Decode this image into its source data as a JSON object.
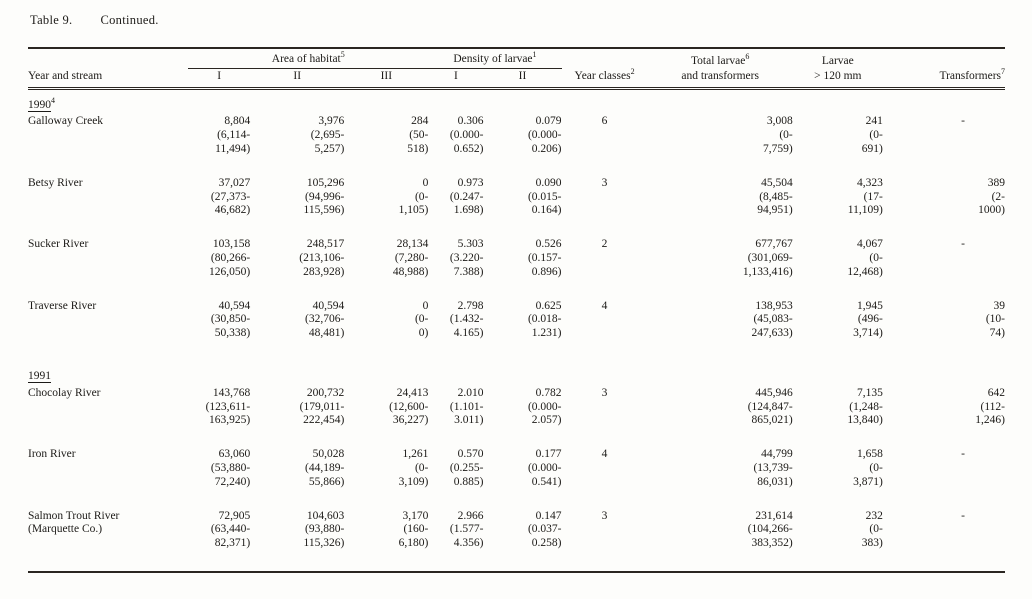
{
  "page": {
    "title_label": "Table 9.",
    "title_continued": "Continued."
  },
  "table": {
    "col_groups": {
      "area": {
        "label": "Area of habitat",
        "sup": "5"
      },
      "density": {
        "label": "Density of larvae",
        "sup": "1"
      }
    },
    "headers": {
      "stream": "Year and stream",
      "area_i": "I",
      "area_ii": "II",
      "area_iii": "III",
      "density_i": "I",
      "density_ii": "II",
      "year_classes": {
        "label": "Year classes",
        "sup": "2"
      },
      "total_line1": {
        "label": "Total larvae",
        "sup": "6"
      },
      "total_line2": "and transformers",
      "larvae_line1": "Larvae",
      "larvae_line2": "> 120 mm",
      "transformers": {
        "label": "Transformers",
        "sup": "7"
      }
    },
    "groups": [
      {
        "year": "1990",
        "sup": "4",
        "rows": [
          {
            "stream": "Galloway Creek",
            "cells": [
              "8,804\n(6,114-\n11,494)",
              "3,976\n(2,695-\n5,257)",
              "284\n(50-\n518)",
              "0.306\n(0.000-\n0.652)",
              "0.079\n(0.000-\n0.206)",
              "6",
              "3,008\n(0-\n7,759)",
              "241\n(0-\n691)",
              "-"
            ]
          },
          {
            "stream": "Betsy River",
            "cells": [
              "37,027\n(27,373-\n46,682)",
              "105,296\n(94,996-\n115,596)",
              "0\n(0-\n1,105)",
              "0.973\n(0.247-\n1.698)",
              "0.090\n(0.015-\n0.164)",
              "3",
              "45,504\n(8,485-\n94,951)",
              "4,323\n(17-\n11,109)",
              "389\n(2-\n1000)"
            ]
          },
          {
            "stream": "Sucker River",
            "cells": [
              "103,158\n(80,266-\n126,050)",
              "248,517\n(213,106-\n283,928)",
              "28,134\n(7,280-\n48,988)",
              "5.303\n(3.220-\n7.388)",
              "0.526\n(0.157-\n0.896)",
              "2",
              "677,767\n(301,069-\n1,133,416)",
              "4,067\n(0-\n12,468)",
              "-"
            ]
          },
          {
            "stream": "Traverse River",
            "cells": [
              "40,594\n(30,850-\n50,338)",
              "40,594\n(32,706-\n48,481)",
              "0\n(0-\n0)",
              "2.798\n(1.432-\n4.165)",
              "0.625\n(0.018-\n1.231)",
              "4",
              "138,953\n(45,083-\n247,633)",
              "1,945\n(496-\n3,714)",
              "39\n(10-\n74)"
            ]
          }
        ]
      },
      {
        "year": "1991",
        "sup": "",
        "rows": [
          {
            "stream": "Chocolay River",
            "cells": [
              "143,768\n(123,611-\n163,925)",
              "200,732\n(179,011-\n222,454)",
              "24,413\n(12,600-\n36,227)",
              "2.010\n(1.101-\n3.011)",
              "0.782\n(0.000-\n2.057)",
              "3",
              "445,946\n(124,847-\n865,021)",
              "7,135\n(1,248-\n13,840)",
              "642\n(112-\n1,246)"
            ]
          },
          {
            "stream": "Iron River",
            "cells": [
              "63,060\n(53,880-\n72,240)",
              "50,028\n(44,189-\n55,866)",
              "1,261\n(0-\n3,109)",
              "0.570\n(0.255-\n0.885)",
              "0.177\n(0.000-\n0.541)",
              "4",
              "44,799\n(13,739-\n86,031)",
              "1,658\n(0-\n3,871)",
              "-"
            ]
          },
          {
            "stream": "Salmon Trout River\n(Marquette Co.)",
            "cells": [
              "72,905\n(63,440-\n82,371)",
              "104,603\n(93,880-\n115,326)",
              "3,170\n(160-\n6,180)",
              "2.966\n(1.577-\n4.356)",
              "0.147\n(0.037-\n0.258)",
              "3",
              "231,614\n(104,266-\n383,352)",
              "232\n(0-\n383)",
              "-"
            ]
          }
        ]
      }
    ]
  }
}
